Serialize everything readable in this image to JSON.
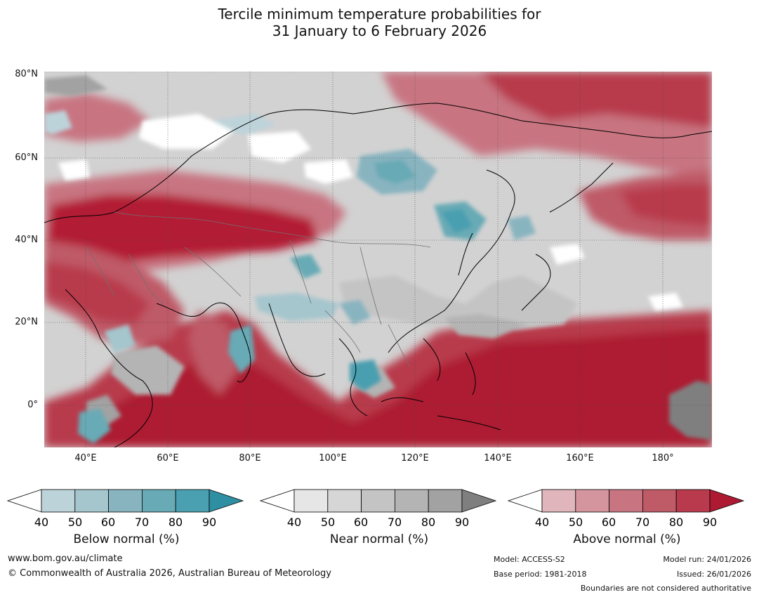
{
  "title": {
    "line1": "Tercile minimum temperature probabilities for",
    "line2": "31 January to 6 February 2026"
  },
  "map": {
    "lat_labels": [
      "80°N",
      "60°N",
      "40°N",
      "20°N",
      "0°"
    ],
    "lon_labels": [
      "40°E",
      "60°E",
      "80°E",
      "100°E",
      "120°E",
      "140°E",
      "160°E",
      "180°"
    ],
    "land_color": "#d2d2d2",
    "ocean_above_color": "#b31b34",
    "boundary_color": "#000000"
  },
  "legend": {
    "below": {
      "label": "Below normal (%)",
      "ticks": [
        "40",
        "50",
        "60",
        "70",
        "80",
        "90"
      ],
      "colors": [
        "#bdd3da",
        "#a5c6cd",
        "#88b4c0",
        "#68aab5",
        "#4a9fb0",
        "#2f8fa2"
      ]
    },
    "near": {
      "label": "Near normal (%)",
      "ticks": [
        "40",
        "50",
        "60",
        "70",
        "80",
        "90"
      ],
      "colors": [
        "#e6e6e6",
        "#d6d6d6",
        "#c4c4c4",
        "#b4b4b4",
        "#a2a2a2",
        "#7f7f7f"
      ]
    },
    "above": {
      "label": "Above normal (%)",
      "ticks": [
        "40",
        "50",
        "60",
        "70",
        "80",
        "90"
      ],
      "colors": [
        "#e0b5bc",
        "#d4959e",
        "#c87581",
        "#bf5a67",
        "#b83a4c",
        "#ad1a32"
      ]
    }
  },
  "footer": {
    "website": "www.bom.gov.au/climate",
    "copyright": "© Commonwealth of Australia 2026, Australian Bureau of Meteorology",
    "model": "Model: ACCESS-S2",
    "base_period": "Base period: 1981-2018",
    "model_run": "Model run: 24/01/2026",
    "issued": "Issued: 26/01/2026",
    "disclaimer": "Boundaries are not considered authoritative"
  }
}
